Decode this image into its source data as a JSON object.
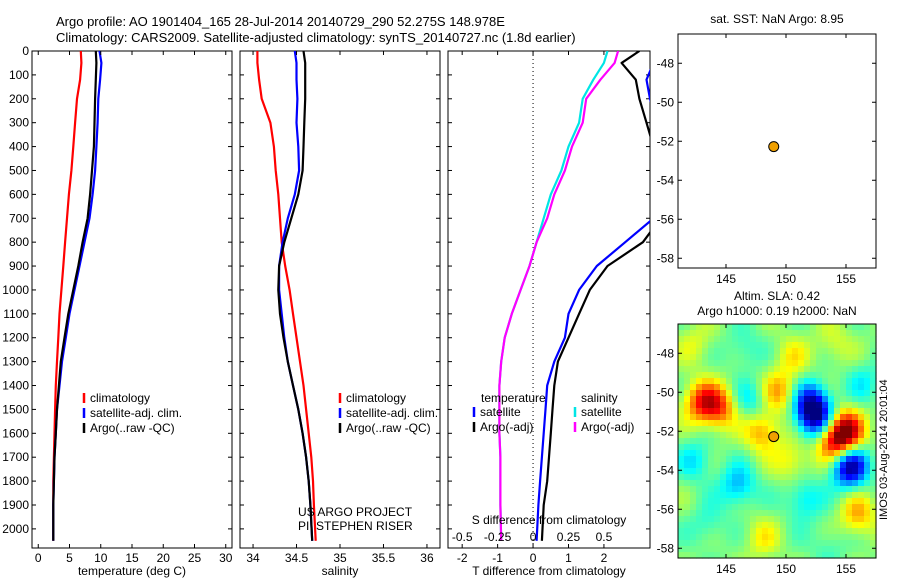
{
  "header": {
    "line1": "Argo profile: AO 1901404_165 28-Jul-2014 20140729_290 52.275S 148.978E",
    "line2": "Climatology: CARS2009. Satellite-adjusted climatology: synTS_20140727.nc (1.8d earlier)"
  },
  "stamp": "IMOS 03-Aug-2014 20:01:04",
  "chart_data": [
    {
      "id": "temperature",
      "type": "line",
      "xlabel": "temperature (deg C)",
      "ylabel": "",
      "xlim": [
        -1,
        31
      ],
      "ylim": [
        2080,
        0
      ],
      "xticks": [
        0,
        5,
        10,
        15,
        20,
        25,
        30
      ],
      "yticks": [
        0,
        100,
        200,
        300,
        400,
        500,
        600,
        700,
        800,
        900,
        1000,
        1100,
        1200,
        1300,
        1400,
        1500,
        1600,
        1700,
        1800,
        1900,
        2000
      ],
      "legend": [
        "climatology",
        "satellite-adj. clim.",
        "Argo(..raw -QC)"
      ],
      "series": [
        {
          "name": "climatology",
          "color": "#ff0000",
          "x": [
            6.8,
            6.9,
            6.7,
            6.2,
            5.9,
            5.6,
            5.3,
            4.9,
            4.6,
            4.3,
            4.0,
            3.7,
            3.4,
            3.2,
            3.0,
            2.8,
            2.7,
            2.6,
            2.5,
            2.4,
            2.4,
            2.4
          ],
          "y": [
            0,
            50,
            120,
            200,
            300,
            400,
            500,
            600,
            700,
            800,
            900,
            1000,
            1100,
            1200,
            1300,
            1400,
            1500,
            1600,
            1700,
            1800,
            1900,
            2050
          ]
        },
        {
          "name": "satellite-adj. clim.",
          "color": "#0000ff",
          "x": [
            9.8,
            10.1,
            9.9,
            9.6,
            9.5,
            9.3,
            9.1,
            8.7,
            8.2,
            7.4,
            6.6,
            5.8,
            5.0,
            4.4,
            3.8,
            3.4,
            3.0,
            2.8,
            2.6,
            2.5,
            2.4,
            2.4
          ],
          "y": [
            0,
            50,
            120,
            200,
            300,
            400,
            500,
            600,
            700,
            800,
            900,
            1000,
            1100,
            1200,
            1300,
            1400,
            1500,
            1600,
            1700,
            1800,
            1900,
            2050
          ]
        },
        {
          "name": "Argo(..raw -QC)",
          "color": "#000000",
          "x": [
            9.2,
            9.3,
            9.2,
            9.1,
            9.0,
            8.9,
            8.6,
            8.3,
            7.9,
            7.1,
            6.4,
            5.6,
            4.8,
            4.2,
            3.6,
            3.3,
            3.0,
            2.8,
            2.6,
            2.5,
            2.4,
            2.4
          ],
          "y": [
            0,
            50,
            120,
            200,
            300,
            400,
            500,
            600,
            700,
            800,
            900,
            1000,
            1100,
            1200,
            1300,
            1400,
            1500,
            1600,
            1700,
            1800,
            1900,
            2050
          ]
        }
      ]
    },
    {
      "id": "salinity",
      "type": "line",
      "xlabel": "salinity",
      "ylabel": "",
      "xlim": [
        33.85,
        36.15
      ],
      "ylim": [
        2080,
        0
      ],
      "xticks": [
        34,
        34.5,
        35,
        35.5,
        36
      ],
      "yticks": [],
      "legend": [
        "climatology",
        "satellite-adj. clim.",
        "Argo(..raw -QC)"
      ],
      "annotation": [
        "US ARGO PROJECT",
        "PI: STEPHEN RISER"
      ],
      "series": [
        {
          "name": "climatology",
          "color": "#ff0000",
          "x": [
            34.05,
            34.05,
            34.07,
            34.1,
            34.2,
            34.24,
            34.26,
            34.29,
            34.31,
            34.33,
            34.37,
            34.42,
            34.46,
            34.5,
            34.54,
            34.58,
            34.61,
            34.64,
            34.67,
            34.69,
            34.7,
            34.72
          ],
          "y": [
            0,
            50,
            120,
            200,
            300,
            400,
            500,
            600,
            700,
            800,
            900,
            1000,
            1100,
            1200,
            1300,
            1400,
            1500,
            1600,
            1700,
            1800,
            1900,
            2050
          ]
        },
        {
          "name": "satellite-adj. clim.",
          "color": "#0000ff",
          "x": [
            34.48,
            34.5,
            34.5,
            34.51,
            34.5,
            34.52,
            34.53,
            34.48,
            34.4,
            34.34,
            34.3,
            34.3,
            34.33,
            34.36,
            34.4,
            34.46,
            34.52,
            34.57,
            34.61,
            34.64,
            34.66,
            34.68
          ],
          "y": [
            0,
            50,
            120,
            200,
            300,
            400,
            500,
            600,
            700,
            800,
            900,
            1000,
            1100,
            1200,
            1300,
            1400,
            1500,
            1600,
            1700,
            1800,
            1900,
            2050
          ]
        },
        {
          "name": "Argo(..raw -QC)",
          "color": "#000000",
          "x": [
            34.58,
            34.6,
            34.6,
            34.6,
            34.59,
            34.58,
            34.57,
            34.52,
            34.44,
            34.36,
            34.3,
            34.29,
            34.31,
            34.35,
            34.4,
            34.46,
            34.52,
            34.57,
            34.61,
            34.64,
            34.66,
            34.68
          ],
          "y": [
            0,
            50,
            120,
            200,
            300,
            400,
            500,
            600,
            700,
            800,
            900,
            1000,
            1100,
            1200,
            1300,
            1400,
            1500,
            1600,
            1700,
            1800,
            1900,
            2050
          ]
        }
      ]
    },
    {
      "id": "difference",
      "type": "line",
      "xlabel": "T difference from climatology",
      "ylabel": "",
      "xlim": [
        -2.4,
        3.3
      ],
      "ylim": [
        2080,
        0
      ],
      "xticks": [
        -2,
        -1,
        0,
        1,
        2
      ],
      "top_label": "S difference from climatology",
      "top_ticks": [
        "-0.5",
        "-0.25",
        "0",
        "0.25",
        "0.5"
      ],
      "legend_headers": [
        "temperature",
        "salinity"
      ],
      "legend_t": [
        "satellite",
        "Argo(-adj)"
      ],
      "legend_s": [
        "satellite",
        "Argo(-adj)"
      ],
      "series": [
        {
          "name": "T satellite",
          "color": "#0000ff",
          "x": [
            3.6,
            3.4,
            3.2,
            3.3,
            3.5,
            3.6,
            3.6,
            3.5,
            3.4,
            2.6,
            1.8,
            1.3,
            1.0,
            0.9,
            0.6,
            0.4,
            0.35,
            0.3,
            0.25,
            0.2,
            0.15,
            0.1
          ],
          "y": [
            0,
            50,
            120,
            200,
            300,
            400,
            500,
            600,
            700,
            800,
            900,
            1000,
            1100,
            1200,
            1300,
            1400,
            1500,
            1600,
            1700,
            1800,
            1900,
            2050
          ]
        },
        {
          "name": "T Argo(-adj)",
          "color": "#000000",
          "x": [
            3.0,
            2.5,
            2.9,
            3.0,
            3.2,
            3.4,
            3.5,
            3.6,
            3.6,
            3.1,
            2.1,
            1.6,
            1.3,
            1.0,
            0.7,
            0.6,
            0.55,
            0.5,
            0.45,
            0.4,
            0.3,
            0.25
          ],
          "y": [
            0,
            50,
            120,
            200,
            300,
            400,
            500,
            600,
            700,
            800,
            900,
            1000,
            1100,
            1200,
            1300,
            1400,
            1500,
            1600,
            1700,
            1800,
            1900,
            2050
          ]
        },
        {
          "name": "S satellite",
          "color": "#00e5e5",
          "x": [
            2.1,
            2.0,
            1.7,
            1.4,
            1.3,
            1.0,
            0.8,
            0.5,
            0.3,
            0.1,
            -0.1,
            -0.35,
            -0.6,
            -0.8,
            -0.9,
            -0.95,
            -0.95,
            -0.95,
            -0.92,
            -0.92,
            -0.92,
            -0.9
          ],
          "y": [
            0,
            50,
            120,
            200,
            300,
            400,
            500,
            600,
            700,
            800,
            900,
            1000,
            1100,
            1200,
            1300,
            1400,
            1500,
            1600,
            1700,
            1800,
            1900,
            2050
          ]
        },
        {
          "name": "S Argo(-adj)",
          "color": "#ff00ff",
          "x": [
            2.4,
            2.3,
            1.9,
            1.5,
            1.4,
            1.1,
            0.9,
            0.6,
            0.4,
            0.1,
            -0.1,
            -0.35,
            -0.6,
            -0.8,
            -0.9,
            -0.95,
            -0.95,
            -0.95,
            -0.92,
            -0.92,
            -0.92,
            -0.9
          ],
          "y": [
            0,
            50,
            120,
            200,
            300,
            400,
            500,
            600,
            700,
            800,
            900,
            1000,
            1100,
            1200,
            1300,
            1400,
            1500,
            1600,
            1700,
            1800,
            1900,
            2050
          ]
        }
      ]
    },
    {
      "id": "sst_map",
      "type": "scatter",
      "title": "sat. SST: NaN Argo: 8.95",
      "xlim": [
        141,
        157.5
      ],
      "ylim": [
        -58.5,
        -46.5
      ],
      "xticks": [
        145,
        150,
        155
      ],
      "yticks": [
        -48,
        -50,
        -52,
        -54,
        -56,
        -58
      ],
      "points": [
        {
          "lon": 148.978,
          "lat": -52.275,
          "color": "#f0a000"
        }
      ]
    },
    {
      "id": "sla_map",
      "type": "heatmap",
      "title": [
        "Altim. SLA: 0.42",
        "Argo h1000: 0.19 h2000: NaN"
      ],
      "xlim": [
        141,
        157.5
      ],
      "ylim": [
        -58.5,
        -46.5
      ],
      "xticks": [
        145,
        150,
        155
      ],
      "yticks": [
        -48,
        -50,
        -52,
        -54,
        -56,
        -58
      ],
      "points": [
        {
          "lon": 148.978,
          "lat": -52.275,
          "color": "#f0a000"
        }
      ],
      "blobs": [
        {
          "lon": 142.5,
          "lat": -47.5,
          "v": 0.2
        },
        {
          "lon": 146.5,
          "lat": -47.8,
          "v": -0.2
        },
        {
          "lon": 150.5,
          "lat": -48.2,
          "v": 0.25
        },
        {
          "lon": 154.0,
          "lat": -47.5,
          "v": 0.2
        },
        {
          "lon": 156.5,
          "lat": -49.5,
          "v": -0.25
        },
        {
          "lon": 143.0,
          "lat": -50.5,
          "v": 0.7
        },
        {
          "lon": 144.5,
          "lat": -50.8,
          "v": 0.6
        },
        {
          "lon": 147.0,
          "lat": -50.5,
          "v": -0.3
        },
        {
          "lon": 149.5,
          "lat": -50.0,
          "v": 0.45
        },
        {
          "lon": 152.0,
          "lat": -50.5,
          "v": -0.7
        },
        {
          "lon": 152.5,
          "lat": -51.3,
          "v": -0.9
        },
        {
          "lon": 155.0,
          "lat": -52.0,
          "v": 1.0
        },
        {
          "lon": 154.0,
          "lat": -52.6,
          "v": 0.7
        },
        {
          "lon": 148.0,
          "lat": -52.0,
          "v": 0.5
        },
        {
          "lon": 150.5,
          "lat": -53.5,
          "v": 0.3
        },
        {
          "lon": 155.3,
          "lat": -53.8,
          "v": -1.1
        },
        {
          "lon": 142.5,
          "lat": -53.5,
          "v": -0.3
        },
        {
          "lon": 146.0,
          "lat": -54.8,
          "v": -0.45
        },
        {
          "lon": 151.5,
          "lat": -55.5,
          "v": -0.35
        },
        {
          "lon": 156.0,
          "lat": -56.3,
          "v": 0.45
        },
        {
          "lon": 143.5,
          "lat": -56.8,
          "v": -0.2
        },
        {
          "lon": 148.0,
          "lat": -57.5,
          "v": 0.25
        },
        {
          "lon": 153.5,
          "lat": -57.8,
          "v": -0.15
        }
      ]
    }
  ]
}
